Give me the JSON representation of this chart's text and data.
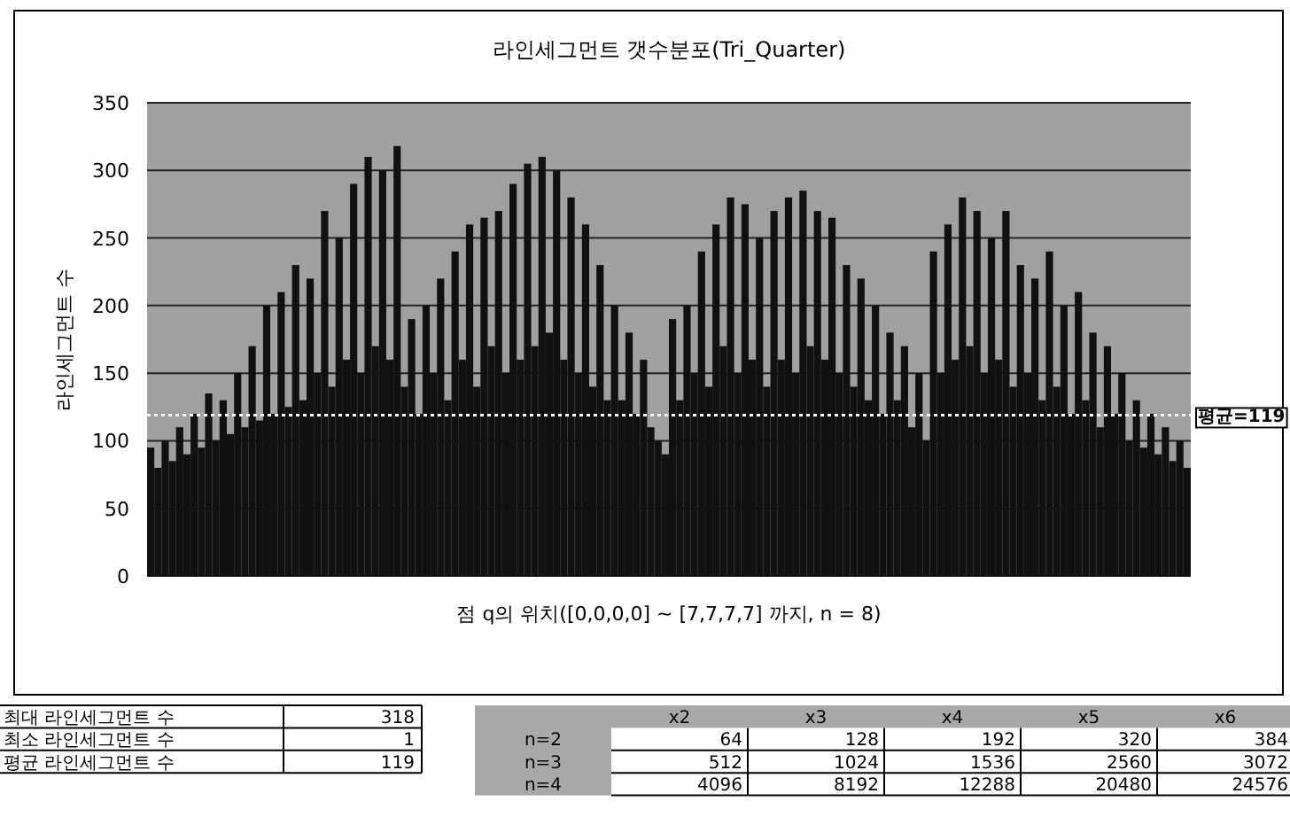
{
  "chart_data": {
    "type": "bar",
    "title": "라인세그먼트 갯수분포(Tri_Quarter)",
    "xlabel": "점 q의 위치([0,0,0,0] ~ [7,7,7,7] 까지, n = 8)",
    "ylabel": "라인세그먼트 수",
    "categories": [
      null,
      null,
      null,
      null,
      null,
      null,
      null,
      null,
      null,
      null,
      null,
      null,
      null,
      null,
      null,
      null,
      null,
      null,
      null,
      null,
      null,
      null,
      null,
      null,
      null,
      null,
      null,
      null,
      null,
      null,
      null,
      null,
      null,
      null,
      null,
      null,
      null,
      null,
      null,
      null,
      null,
      null,
      null,
      null,
      null,
      null,
      null,
      null,
      null,
      null,
      null,
      null,
      null,
      null,
      null,
      null,
      null,
      null,
      null,
      null,
      null,
      null,
      null,
      null,
      null,
      null,
      null,
      null,
      null,
      null,
      null,
      null,
      null,
      null,
      null,
      null,
      null,
      null,
      null,
      null,
      null,
      null,
      null,
      null,
      null,
      null,
      null,
      null,
      null,
      null,
      null,
      null,
      null,
      null,
      null,
      null,
      null,
      null,
      null,
      null,
      null,
      null,
      null,
      null,
      null,
      null,
      null,
      null,
      null,
      null,
      null,
      null,
      null,
      null,
      null,
      null,
      null,
      null,
      null,
      null,
      null,
      null,
      null,
      null,
      null,
      null,
      null,
      null,
      null,
      null,
      null,
      null,
      null,
      null,
      null,
      null,
      null,
      null,
      null,
      null,
      null,
      null,
      null,
      null
    ],
    "values": [
      95,
      80,
      100,
      85,
      110,
      90,
      120,
      95,
      135,
      100,
      130,
      105,
      150,
      110,
      170,
      115,
      200,
      120,
      210,
      125,
      230,
      130,
      220,
      150,
      270,
      140,
      250,
      160,
      290,
      150,
      310,
      170,
      300,
      160,
      318,
      140,
      190,
      120,
      200,
      150,
      220,
      130,
      240,
      160,
      260,
      140,
      265,
      170,
      270,
      150,
      290,
      160,
      305,
      170,
      310,
      180,
      300,
      160,
      280,
      150,
      260,
      140,
      230,
      130,
      200,
      130,
      180,
      120,
      160,
      110,
      100,
      90,
      190,
      130,
      200,
      150,
      240,
      140,
      260,
      170,
      280,
      150,
      275,
      160,
      250,
      140,
      270,
      160,
      280,
      150,
      285,
      170,
      270,
      160,
      265,
      150,
      230,
      140,
      220,
      130,
      200,
      120,
      180,
      130,
      170,
      110,
      150,
      100,
      240,
      150,
      260,
      160,
      280,
      170,
      270,
      150,
      250,
      160,
      270,
      140,
      230,
      150,
      220,
      130,
      240,
      140,
      200,
      120,
      210,
      130,
      180,
      110,
      170,
      120,
      150,
      100,
      130,
      95,
      120,
      90,
      110,
      85,
      100,
      80
    ],
    "color": "#111111",
    "ylim": [
      0,
      350
    ],
    "yticks": [
      0,
      50,
      100,
      150,
      200,
      250,
      300,
      350
    ],
    "grid": "y",
    "ref_lines": [
      {
        "axis": "y",
        "value": 119,
        "label": "평균=119",
        "color": "#ffffff",
        "line_style": "dotted"
      }
    ],
    "annotations": [
      "최대 라인세그먼트 수",
      "318",
      "최소 라인세그먼트 수",
      "1",
      "평균 라인세그먼트 수",
      "119",
      "x2",
      "x3",
      "x4",
      "x5",
      "x6",
      "n=2",
      "64",
      "128",
      "192",
      "320",
      "384",
      "n=3",
      "512",
      "1024",
      "1536",
      "2560",
      "3072",
      "n=4",
      "4096",
      "8192",
      "12288",
      "20480",
      "24576"
    ]
  }
}
